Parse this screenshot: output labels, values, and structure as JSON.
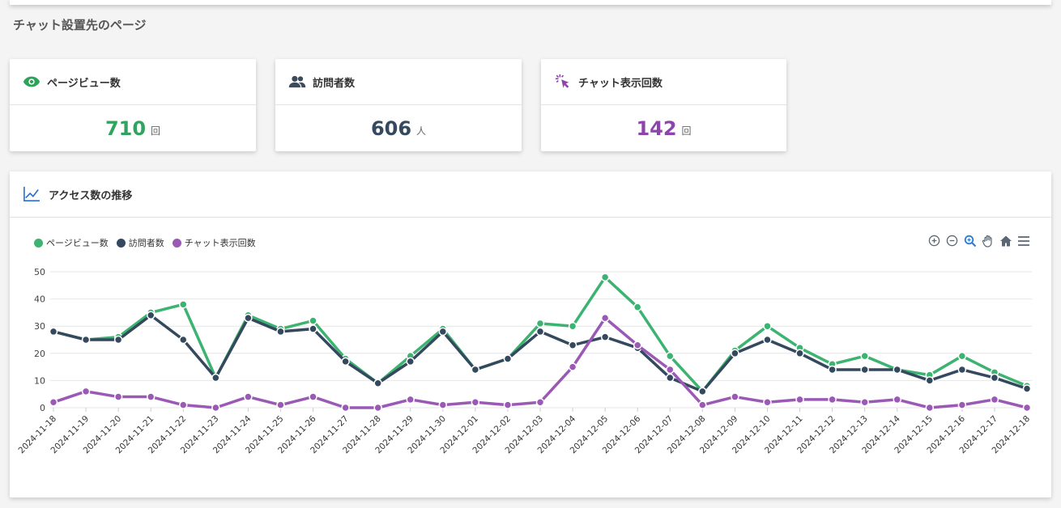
{
  "page": {
    "title": "チャット設置先のページ"
  },
  "cards": [
    {
      "label": "ページビュー数",
      "value": "710",
      "unit": "回",
      "color": "#31a35f",
      "icon": "eye-icon"
    },
    {
      "label": "訪問者数",
      "value": "606",
      "unit": "人",
      "color": "#34495e",
      "icon": "users-icon"
    },
    {
      "label": "チャット表示回数",
      "value": "142",
      "unit": "回",
      "color": "#8e44ad",
      "icon": "cursor-click-icon"
    }
  ],
  "chart_card": {
    "title": "アクセス数の推移",
    "icon": "line-chart-icon"
  },
  "toolbar": [
    "zoom-in-icon",
    "zoom-out-icon",
    "selection-zoom-icon",
    "pan-hand-icon",
    "reset-home-icon",
    "menu-icon"
  ],
  "chart_data": {
    "type": "line",
    "x": [
      "2024-11-18",
      "2024-11-19",
      "2024-11-20",
      "2024-11-21",
      "2024-11-22",
      "2024-11-23",
      "2024-11-24",
      "2024-11-25",
      "2024-11-26",
      "2024-11-27",
      "2024-11-28",
      "2024-11-29",
      "2024-11-30",
      "2024-12-01",
      "2024-12-02",
      "2024-12-03",
      "2024-12-04",
      "2024-12-05",
      "2024-12-06",
      "2024-12-07",
      "2024-12-08",
      "2024-12-09",
      "2024-12-10",
      "2024-12-11",
      "2024-12-12",
      "2024-12-13",
      "2024-12-14",
      "2024-12-15",
      "2024-12-16",
      "2024-12-17",
      "2024-12-18"
    ],
    "series": [
      {
        "name": "ページビュー数",
        "color": "#3cb371",
        "values": [
          28,
          25,
          26,
          35,
          38,
          11,
          34,
          29,
          32,
          18,
          9,
          19,
          29,
          14,
          18,
          31,
          30,
          48,
          37,
          19,
          6,
          21,
          30,
          22,
          16,
          19,
          14,
          12,
          19,
          13,
          8
        ]
      },
      {
        "name": "訪問者数",
        "color": "#34495e",
        "values": [
          28,
          25,
          25,
          34,
          25,
          11,
          33,
          28,
          29,
          17,
          9,
          17,
          28,
          14,
          18,
          28,
          23,
          26,
          22,
          11,
          6,
          20,
          25,
          20,
          14,
          14,
          14,
          10,
          14,
          11,
          7
        ]
      },
      {
        "name": "チャット表示回数",
        "color": "#9b59b6",
        "values": [
          2,
          6,
          4,
          4,
          1,
          0,
          4,
          1,
          4,
          0,
          0,
          3,
          1,
          2,
          1,
          2,
          15,
          33,
          23,
          14,
          1,
          4,
          2,
          3,
          3,
          2,
          3,
          0,
          1,
          3,
          0
        ]
      }
    ],
    "ylim": [
      0,
      50
    ],
    "yticks": [
      0,
      10,
      20,
      30,
      40,
      50
    ],
    "grid": true,
    "legend": "top-left"
  }
}
